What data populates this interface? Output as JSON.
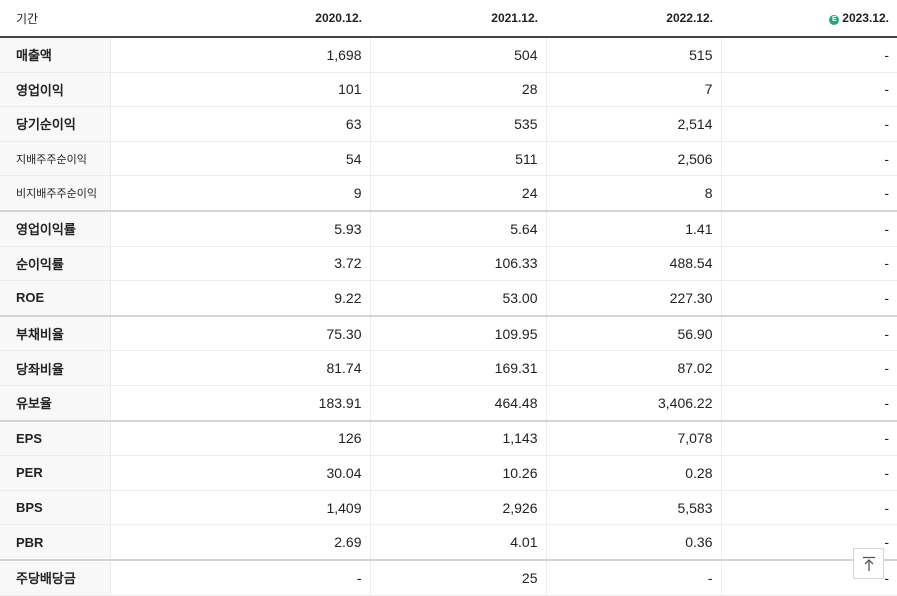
{
  "header": {
    "label": "기간",
    "years": [
      "2020.12.",
      "2021.12.",
      "2022.12.",
      "2023.12."
    ],
    "estimate_icon_letter": "E",
    "estimate_icon": "estimate-badge-icon"
  },
  "rows": [
    {
      "label": "매출액",
      "values": [
        "1,698",
        "504",
        "515",
        "-"
      ]
    },
    {
      "label": "영업이익",
      "values": [
        "101",
        "28",
        "7",
        "-"
      ]
    },
    {
      "label": "당기순이익",
      "values": [
        "63",
        "535",
        "2,514",
        "-"
      ]
    },
    {
      "label": "지배주주순이익",
      "values": [
        "54",
        "511",
        "2,506",
        "-"
      ]
    },
    {
      "label": "비지배주주순이익",
      "values": [
        "9",
        "24",
        "8",
        "-"
      ]
    },
    {
      "label": "영업이익률",
      "values": [
        "5.93",
        "5.64",
        "1.41",
        "-"
      ]
    },
    {
      "label": "순이익률",
      "values": [
        "3.72",
        "106.33",
        "488.54",
        "-"
      ]
    },
    {
      "label": "ROE",
      "values": [
        "9.22",
        "53.00",
        "227.30",
        "-"
      ]
    },
    {
      "label": "부채비율",
      "values": [
        "75.30",
        "109.95",
        "56.90",
        "-"
      ]
    },
    {
      "label": "당좌비율",
      "values": [
        "81.74",
        "169.31",
        "87.02",
        "-"
      ]
    },
    {
      "label": "유보율",
      "values": [
        "183.91",
        "464.48",
        "3,406.22",
        "-"
      ]
    },
    {
      "label": "EPS",
      "values": [
        "126",
        "1,143",
        "7,078",
        "-"
      ]
    },
    {
      "label": "PER",
      "values": [
        "30.04",
        "10.26",
        "0.28",
        "-"
      ]
    },
    {
      "label": "BPS",
      "values": [
        "1,409",
        "2,926",
        "5,583",
        "-"
      ]
    },
    {
      "label": "PBR",
      "values": [
        "2.69",
        "4.01",
        "0.36",
        "-"
      ]
    },
    {
      "label": "주당배당금",
      "values": [
        "-",
        "25",
        "-",
        "-"
      ]
    }
  ],
  "scroll_top_icon": "arrow-up-to-top-icon"
}
